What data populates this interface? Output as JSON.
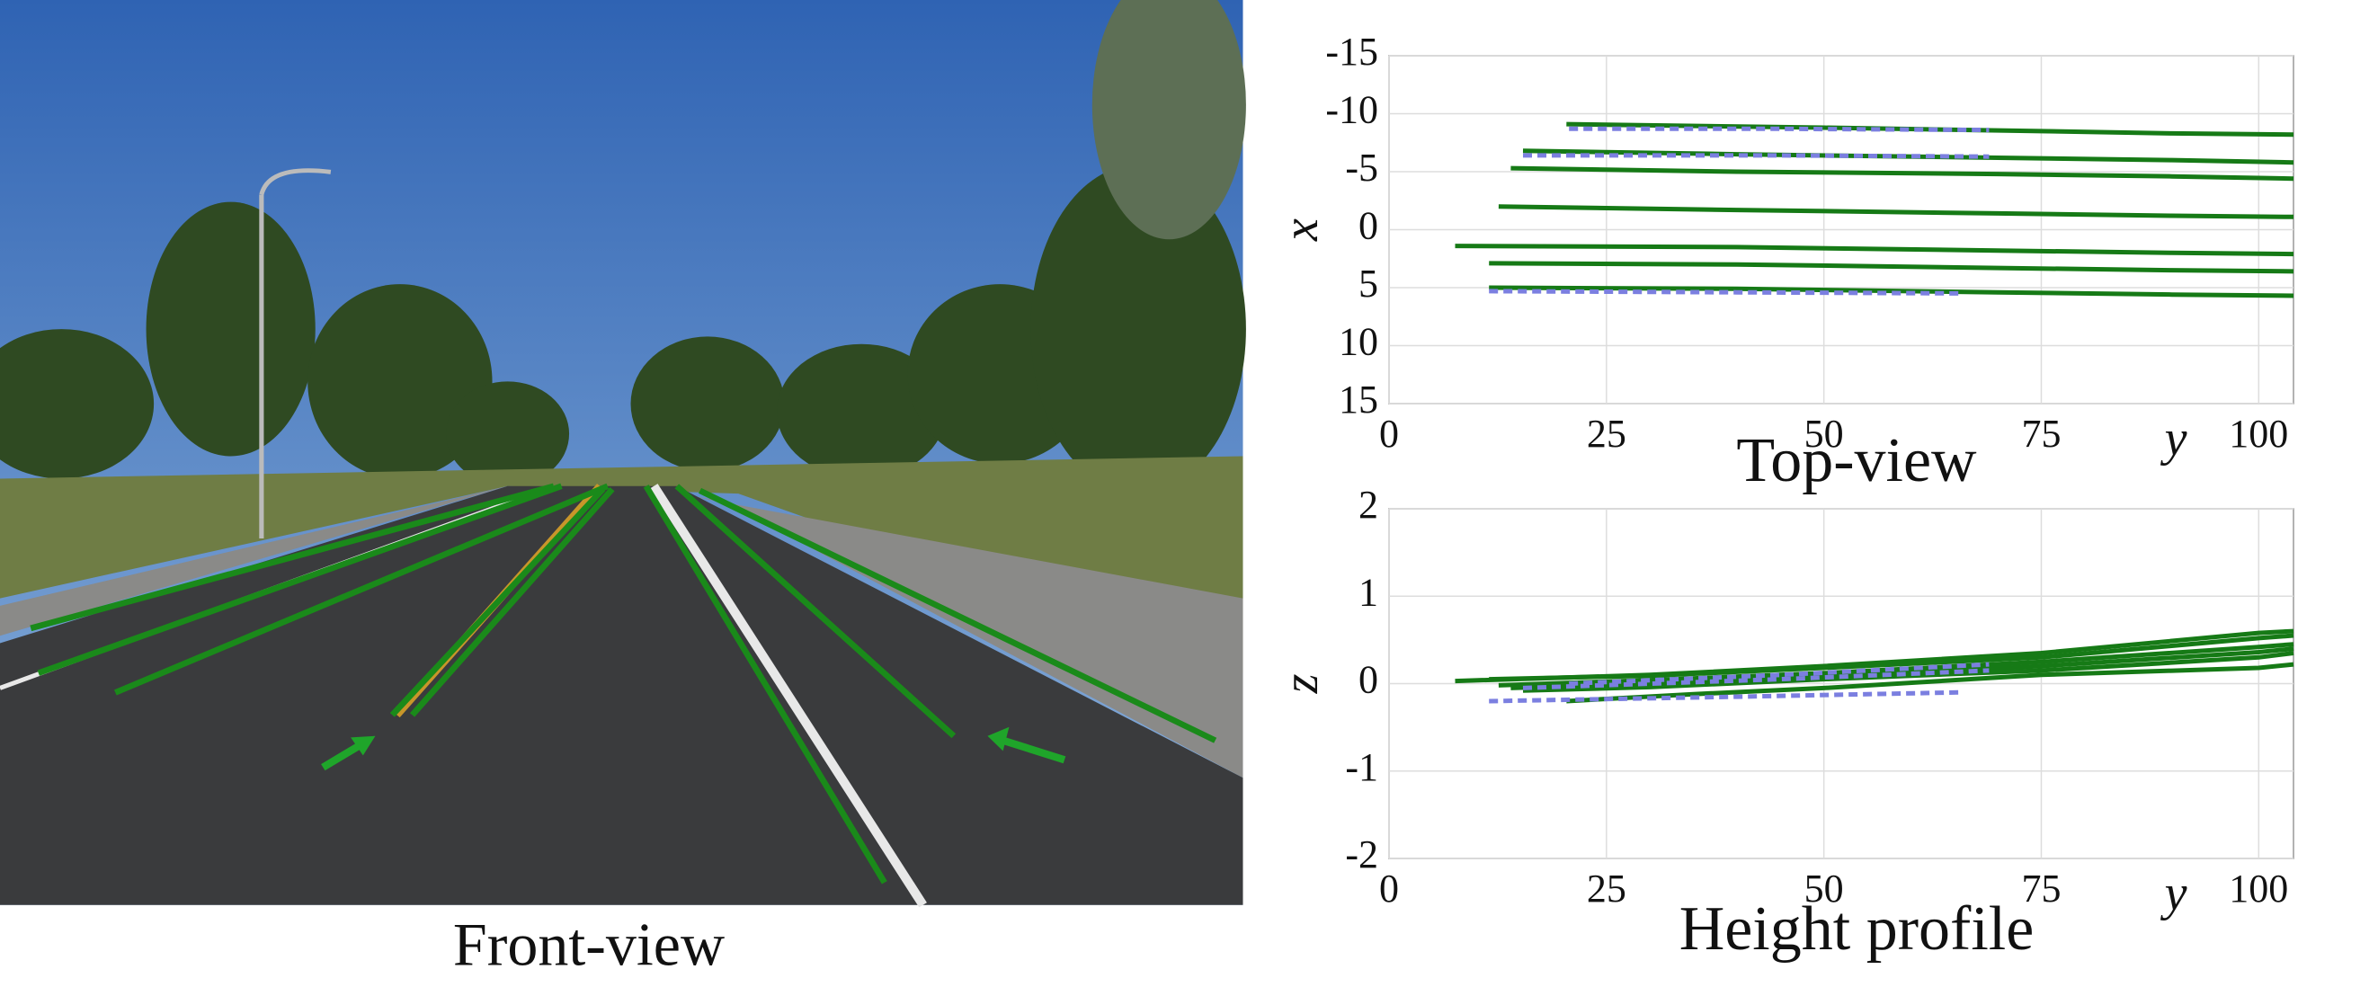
{
  "front_view": {
    "caption": "Front-view"
  },
  "chart_data": [
    {
      "type": "line",
      "title": "Top-view",
      "x_label": "y",
      "y_label": "x",
      "xlim": [
        0,
        104
      ],
      "xticks": [
        0,
        25,
        50,
        75,
        100
      ],
      "ylim": [
        15,
        -15
      ],
      "yticks": [
        -15,
        -10,
        -5,
        0,
        5,
        10,
        15
      ],
      "grid": true,
      "series": [
        {
          "color": "#167a16",
          "dashed": false,
          "x": [
            20.4,
            50,
            75,
            90,
            104
          ],
          "values": [
            -9.1,
            -8.8,
            -8.5,
            -8.3,
            -8.2
          ]
        },
        {
          "color": "#167a16",
          "dashed": false,
          "x": [
            15.4,
            40,
            70,
            90,
            104
          ],
          "values": [
            -6.8,
            -6.5,
            -6.2,
            -6.0,
            -5.8
          ]
        },
        {
          "color": "#167a16",
          "dashed": false,
          "x": [
            14,
            40,
            70,
            90,
            104
          ],
          "values": [
            -5.3,
            -5.0,
            -4.8,
            -4.6,
            -4.4
          ]
        },
        {
          "color": "#167a16",
          "dashed": false,
          "x": [
            12.6,
            40,
            70,
            90,
            104
          ],
          "values": [
            -2.0,
            -1.7,
            -1.4,
            -1.2,
            -1.1
          ]
        },
        {
          "color": "#167a16",
          "dashed": false,
          "x": [
            7.6,
            40,
            70,
            90,
            104
          ],
          "values": [
            1.4,
            1.5,
            1.8,
            2.0,
            2.1
          ]
        },
        {
          "color": "#167a16",
          "dashed": false,
          "x": [
            11.5,
            40,
            70,
            90,
            104
          ],
          "values": [
            2.9,
            3.0,
            3.3,
            3.5,
            3.6
          ]
        },
        {
          "color": "#167a16",
          "dashed": false,
          "x": [
            11.5,
            40,
            70,
            90,
            104
          ],
          "values": [
            5.0,
            5.1,
            5.4,
            5.6,
            5.7
          ]
        },
        {
          "color": "#7b7fe0",
          "dashed": true,
          "x": [
            20.7,
            45,
            69
          ],
          "values": [
            -8.7,
            -8.7,
            -8.6
          ]
        },
        {
          "color": "#7b7fe0",
          "dashed": true,
          "x": [
            15.4,
            45,
            69
          ],
          "values": [
            -6.4,
            -6.4,
            -6.3
          ]
        },
        {
          "color": "#7b7fe0",
          "dashed": true,
          "x": [
            11.5,
            40,
            66
          ],
          "values": [
            5.3,
            5.4,
            5.5
          ]
        }
      ]
    },
    {
      "type": "line",
      "title": "Height profile",
      "x_label": "y",
      "y_label": "z",
      "xlim": [
        0,
        104
      ],
      "xticks": [
        0,
        25,
        50,
        75,
        100
      ],
      "ylim": [
        -2,
        2
      ],
      "yticks": [
        -2,
        -1,
        0,
        1,
        2
      ],
      "grid": true,
      "series": [
        {
          "color": "#167a16",
          "dashed": false,
          "x": [
            7.6,
            30,
            50,
            75,
            100,
            104
          ],
          "values": [
            0.03,
            0.1,
            0.2,
            0.35,
            0.58,
            0.6
          ]
        },
        {
          "color": "#167a16",
          "dashed": false,
          "x": [
            11.5,
            30,
            50,
            75,
            100,
            104
          ],
          "values": [
            0.05,
            0.09,
            0.18,
            0.3,
            0.52,
            0.55
          ]
        },
        {
          "color": "#167a16",
          "dashed": false,
          "x": [
            12.6,
            30,
            50,
            75,
            100,
            104
          ],
          "values": [
            -0.02,
            0.04,
            0.12,
            0.25,
            0.42,
            0.45
          ]
        },
        {
          "color": "#167a16",
          "dashed": false,
          "x": [
            14,
            30,
            50,
            75,
            100,
            104
          ],
          "values": [
            -0.05,
            0.0,
            0.08,
            0.2,
            0.36,
            0.4
          ]
        },
        {
          "color": "#167a16",
          "dashed": false,
          "x": [
            15.4,
            30,
            50,
            75,
            100,
            104
          ],
          "values": [
            -0.08,
            -0.04,
            0.05,
            0.15,
            0.3,
            0.35
          ]
        },
        {
          "color": "#167a16",
          "dashed": false,
          "x": [
            20.4,
            35,
            50,
            75,
            100,
            104
          ],
          "values": [
            -0.2,
            -0.12,
            -0.05,
            0.1,
            0.18,
            0.22
          ]
        },
        {
          "color": "#7b7fe0",
          "dashed": true,
          "x": [
            20.7,
            45,
            69
          ],
          "values": [
            0.0,
            0.1,
            0.22
          ]
        },
        {
          "color": "#7b7fe0",
          "dashed": true,
          "x": [
            15.4,
            45,
            69
          ],
          "values": [
            -0.05,
            0.05,
            0.15
          ]
        },
        {
          "color": "#7b7fe0",
          "dashed": true,
          "x": [
            11.5,
            40,
            66
          ],
          "values": [
            -0.2,
            -0.15,
            -0.1
          ]
        }
      ]
    }
  ]
}
